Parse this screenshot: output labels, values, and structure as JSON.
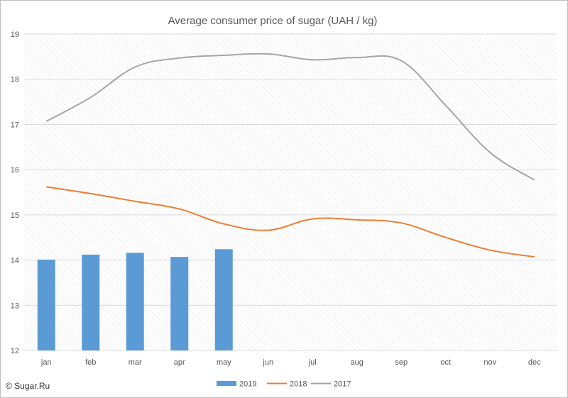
{
  "chart_data": {
    "type": "bar+line",
    "title": "Average consumer price of sugar (UAH / kg)",
    "categories": [
      "jan",
      "feb",
      "mar",
      "apr",
      "may",
      "jun",
      "jul",
      "aug",
      "sep",
      "oct",
      "nov",
      "dec"
    ],
    "ylim": [
      12,
      19
    ],
    "yticks": [
      "12",
      "13",
      "14",
      "15",
      "16",
      "17",
      "18",
      "19"
    ],
    "grid": true,
    "legend_position": "bottom",
    "series": [
      {
        "name": "2019",
        "type": "bar",
        "color": "#5b9bd5",
        "values": [
          14.01,
          14.12,
          14.16,
          14.07,
          14.24,
          null,
          null,
          null,
          null,
          null,
          null,
          null
        ]
      },
      {
        "name": "2018",
        "type": "line",
        "color": "#ed7d31",
        "values": [
          15.62,
          15.47,
          15.3,
          15.13,
          14.8,
          14.66,
          14.91,
          14.89,
          14.82,
          14.5,
          14.22,
          14.07
        ]
      },
      {
        "name": "2017",
        "type": "line",
        "color": "#a5a5a5",
        "values": [
          17.07,
          17.6,
          18.27,
          18.47,
          18.53,
          18.56,
          18.43,
          18.48,
          18.41,
          17.42,
          16.38,
          15.77
        ]
      }
    ]
  },
  "credit": "© Sugar.Ru"
}
